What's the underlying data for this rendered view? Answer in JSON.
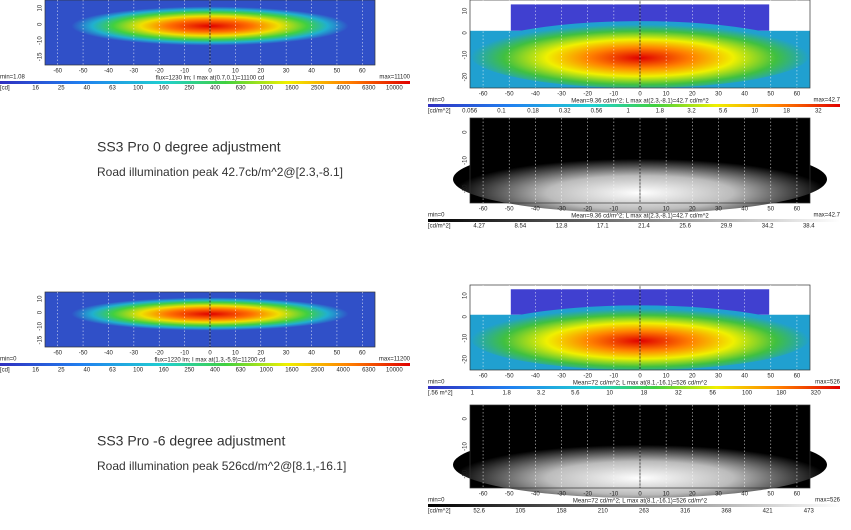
{
  "sections": [
    {
      "title": "SS3 Pro 0 degree adjustment",
      "subtitle": "Road illumination peak 42.7cb/m^2@[2.3,-8.1]",
      "intensity": {
        "x_ticks": [
          -60,
          -50,
          -40,
          -30,
          -20,
          -10,
          0,
          10,
          20,
          30,
          40,
          50,
          60
        ],
        "y_ticks": [
          10,
          0,
          -10,
          -15
        ],
        "min": "min=1.08",
        "info": "flux=1230 lm; I max at(0.7,0.1)=11100 cd",
        "max": "max=11100",
        "unit": "[cd]",
        "scale": [
          16,
          25,
          40,
          63,
          100,
          160,
          250,
          400,
          630,
          1000,
          1600,
          2500,
          4000,
          6300,
          10000
        ]
      },
      "road": {
        "x_ticks": [
          -60,
          -50,
          -40,
          -30,
          -20,
          -10,
          0,
          10,
          20,
          30,
          40,
          50,
          60
        ],
        "y_ticks": [
          10,
          0,
          -10,
          -20
        ],
        "min": "min=0",
        "info": "Mean=9.36 cd/m^2; L max at(2.3,-8.1)=42.7 cd/m^2",
        "max": "max=42.7",
        "unit": "[cd/m^2]",
        "scale": [
          0.056,
          0.1,
          0.18,
          0.32,
          0.56,
          1,
          1.8,
          3.2,
          5.6,
          10,
          18,
          32
        ]
      },
      "gray": {
        "x_ticks": [
          -60,
          -50,
          -40,
          -30,
          -20,
          -10,
          0,
          10,
          20,
          30,
          40,
          50,
          60
        ],
        "y_ticks": [
          0,
          -10,
          -20
        ],
        "min": "min=0",
        "info": "Mean=9.36 cd/m^2; L max at(2.3,-8.1)=42.7 cd/m^2",
        "max": "max=42.7",
        "unit": "[cd/m^2]",
        "scale": [
          4.27,
          8.54,
          12.8,
          17.1,
          21.4,
          25.6,
          29.9,
          34.2,
          38.4
        ]
      }
    },
    {
      "title": "SS3 Pro -6 degree adjustment",
      "subtitle": "Road illumination peak 526cd/m^2@[8.1,-16.1]",
      "intensity": {
        "x_ticks": [
          -60,
          -50,
          -40,
          -30,
          -20,
          -10,
          0,
          10,
          20,
          30,
          40,
          50,
          60
        ],
        "y_ticks": [
          10,
          0,
          -10,
          -15
        ],
        "min": "min=0",
        "info": "flux=1220 lm; I max at(1.3,-5.9)=11200 cd",
        "max": "max=11200",
        "unit": "[cd]",
        "scale": [
          16,
          25,
          40,
          63,
          100,
          160,
          250,
          400,
          630,
          1000,
          1600,
          2500,
          4000,
          6300,
          10000
        ]
      },
      "road": {
        "x_ticks": [
          -60,
          -50,
          -40,
          -30,
          -20,
          -10,
          0,
          10,
          20,
          30,
          40,
          50,
          60
        ],
        "y_ticks": [
          10,
          0,
          -10,
          -20
        ],
        "min": "min=0",
        "info": "Mean=72 cd/m^2; L max at(8.1,-16.1)=526 cd/m^2",
        "max": "max=526",
        "unit": "[.56 m^2]",
        "scale": [
          1,
          1.8,
          3.2,
          5.6,
          10,
          18,
          32,
          56,
          100,
          180,
          320
        ]
      },
      "gray": {
        "x_ticks": [
          -60,
          -50,
          -40,
          -30,
          -20,
          -10,
          0,
          10,
          20,
          30,
          40,
          50,
          60
        ],
        "y_ticks": [
          0,
          -10,
          -20
        ],
        "min": "min=0",
        "info": "Mean=72 cd/m^2; L max at(8.1,-16.1)=526 cd/m^2",
        "max": "max=526",
        "unit": "[cd/m^2]",
        "scale": [
          52.6,
          105,
          158,
          210,
          263,
          316,
          368,
          421,
          473
        ]
      }
    }
  ]
}
